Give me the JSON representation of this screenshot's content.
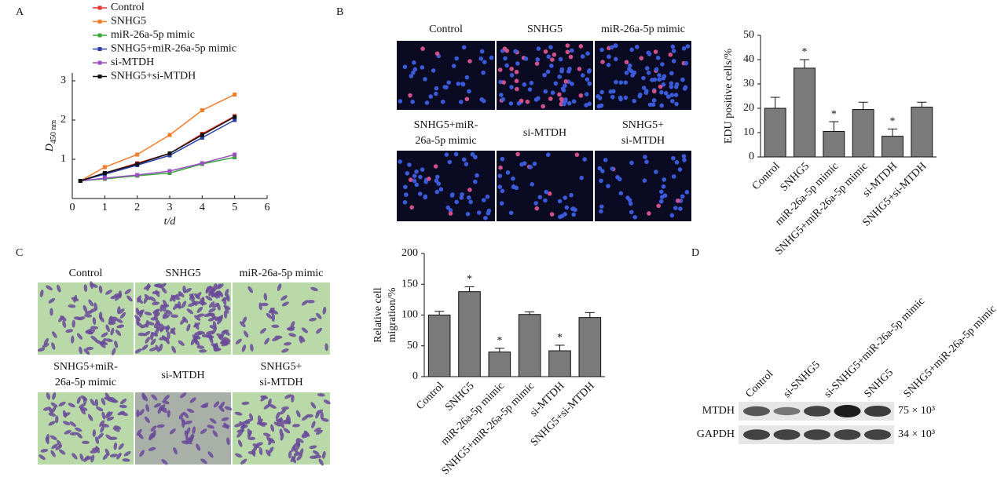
{
  "chart_data": [
    {
      "type": "line",
      "panel_label": "A",
      "ylabel": "D",
      "ylabel_sub": "450 nm",
      "xlabel": "t/d",
      "x": [
        0.25,
        1,
        2,
        3,
        4,
        5
      ],
      "xlim": [
        0,
        6
      ],
      "xticks": [
        0,
        1,
        2,
        3,
        4,
        5,
        6
      ],
      "ylim": [
        0,
        3.2
      ],
      "yticks": [
        1,
        2,
        3
      ],
      "series": [
        {
          "name": "Control",
          "color": "#e8332a",
          "values": [
            0.45,
            0.65,
            0.9,
            1.15,
            1.65,
            2.1
          ]
        },
        {
          "name": "SNHG5",
          "color": "#f47b2a",
          "values": [
            0.45,
            0.8,
            1.12,
            1.62,
            2.25,
            2.65
          ]
        },
        {
          "name": "miR-26a-5p mimic",
          "color": "#3aa83a",
          "values": [
            0.45,
            0.5,
            0.58,
            0.65,
            0.88,
            1.05
          ]
        },
        {
          "name": "SNHG5+miR-26a-5p mimic",
          "color": "#2a3fa8",
          "values": [
            0.45,
            0.62,
            0.85,
            1.1,
            1.55,
            2.0
          ]
        },
        {
          "name": "si-MTDH",
          "color": "#9a4fc0",
          "values": [
            0.45,
            0.52,
            0.6,
            0.7,
            0.9,
            1.12
          ]
        },
        {
          "name": "SNHG5+si-MTDH",
          "color": "#111111",
          "values": [
            0.45,
            0.65,
            0.88,
            1.15,
            1.62,
            2.08
          ]
        }
      ]
    },
    {
      "type": "bar",
      "ylabel": "EDU positive cells/%",
      "color": "#7a7a7a",
      "categories": [
        "Control",
        "SNHG5",
        "miR-26a-5p mimic",
        "SNHG5+miR-26a-5p mimic",
        "si-MTDH",
        "SNHG5+si-MTDH"
      ],
      "values": [
        20,
        36.5,
        10.5,
        19.5,
        8.5,
        20.5
      ],
      "errors": [
        4.5,
        3.5,
        4,
        3,
        3,
        2
      ],
      "markers": [
        null,
        "*",
        "*",
        null,
        "*",
        null
      ],
      "ylim": [
        0,
        50
      ],
      "yticks": [
        0,
        10,
        20,
        30,
        40,
        50
      ]
    },
    {
      "type": "bar",
      "ylabel": [
        "Relative cell",
        "migration/%"
      ],
      "color": "#7a7a7a",
      "categories": [
        "Control",
        "SNHG5",
        "miR-26a-5p mimic",
        "SNHG5+miR-26a-5p mimic",
        "si-MTDH",
        "SNHG5+si-MTDH"
      ],
      "values": [
        100,
        138,
        40,
        101,
        42,
        96
      ],
      "errors": [
        6,
        8,
        6,
        4,
        9,
        8
      ],
      "markers": [
        null,
        "*",
        "*",
        null,
        "*",
        null
      ],
      "ylim": [
        0,
        200
      ],
      "yticks": [
        0,
        50,
        100,
        150,
        200
      ]
    }
  ],
  "image_panels": [
    {
      "panel_label": "B",
      "style": "fluorescence",
      "labels": [
        [
          "Control"
        ],
        [
          "SNHG5"
        ],
        [
          "miR-26a-5p mimic"
        ],
        [
          "SNHG5+miR-",
          "26a-5p mimic"
        ],
        [
          "si-MTDH"
        ],
        [
          "SNHG5+",
          "si-MTDH"
        ]
      ]
    },
    {
      "panel_label": "C",
      "style": "transwell",
      "labels": [
        [
          "Control"
        ],
        [
          "SNHG5"
        ],
        [
          "miR-26a-5p mimic"
        ],
        [
          "SNHG5+miR-",
          "26a-5p mimic"
        ],
        [
          "si-MTDH"
        ],
        [
          "SNHG5+",
          "si-MTDH"
        ]
      ]
    }
  ],
  "blot": {
    "panel_label": "D",
    "lanes": [
      "Control",
      "si-SNHG5",
      "si-SNHG5+miR-26a-5p mimic",
      "SNHG5",
      "SNHG5+miR-26a-5p mimic"
    ],
    "rows": [
      {
        "name": "MTDH",
        "size": "75 × 10³"
      },
      {
        "name": "GAPDH",
        "size": "34 × 10³"
      }
    ]
  }
}
